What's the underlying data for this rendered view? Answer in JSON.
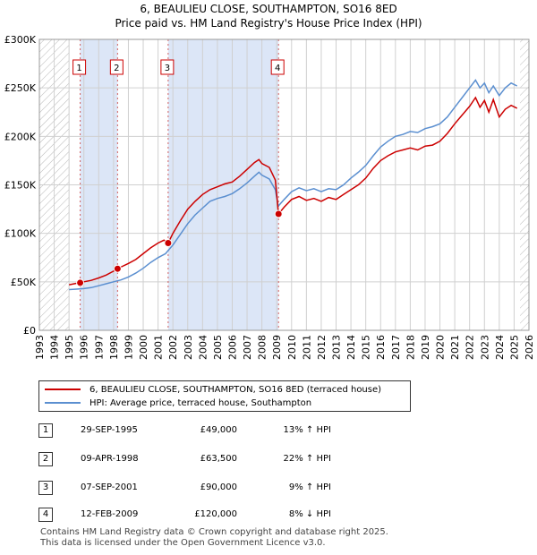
{
  "title_line1": "6, BEAULIEU CLOSE, SOUTHAMPTON, SO16 8ED",
  "title_line2": "Price paid vs. HM Land Registry's House Price Index (HPI)",
  "legend": {
    "property_label": "6, BEAULIEU CLOSE, SOUTHAMPTON, SO16 8ED (terraced house)",
    "hpi_label": "HPI: Average price, terraced house, Southampton"
  },
  "colors": {
    "property": "#cc0000",
    "hpi": "#5b8fd0",
    "shade": "#dce6f7",
    "grid": "#d0d0d0",
    "marker_line": "#d06060"
  },
  "transactions": [
    {
      "num": "1",
      "date": "29-SEP-1995",
      "price": "£49,000",
      "hpi": "13% ↑ HPI"
    },
    {
      "num": "2",
      "date": "09-APR-1998",
      "price": "£63,500",
      "hpi": "22% ↑ HPI"
    },
    {
      "num": "3",
      "date": "07-SEP-2001",
      "price": "£90,000",
      "hpi": "9% ↑ HPI"
    },
    {
      "num": "4",
      "date": "12-FEB-2009",
      "price": "£120,000",
      "hpi": "8% ↓ HPI"
    }
  ],
  "footer_line1": "Contains HM Land Registry data © Crown copyright and database right 2025.",
  "footer_line2": "This data is licensed under the Open Government Licence v3.0.",
  "chart_data": {
    "type": "line",
    "title": "6, BEAULIEU CLOSE, SOUTHAMPTON, SO16 8ED",
    "xlim": [
      1993,
      2026
    ],
    "ylim": [
      0,
      300000
    ],
    "x_ticks": [
      "1993",
      "1994",
      "1995",
      "1996",
      "1997",
      "1998",
      "1999",
      "2000",
      "2001",
      "2002",
      "2003",
      "2004",
      "2005",
      "2006",
      "2007",
      "2008",
      "2009",
      "2010",
      "2011",
      "2012",
      "2013",
      "2014",
      "2015",
      "2016",
      "2017",
      "2018",
      "2019",
      "2020",
      "2021",
      "2022",
      "2023",
      "2024",
      "2025",
      "2026"
    ],
    "y_ticks": [
      {
        "value": 0,
        "label": "£0"
      },
      {
        "value": 50000,
        "label": "£50K"
      },
      {
        "value": 100000,
        "label": "£100K"
      },
      {
        "value": 150000,
        "label": "£150K"
      },
      {
        "value": 200000,
        "label": "£200K"
      },
      {
        "value": 250000,
        "label": "£250K"
      },
      {
        "value": 300000,
        "label": "£300K"
      }
    ],
    "hatch_ranges": [
      [
        1993,
        1995.0
      ],
      [
        2025.4,
        2026
      ]
    ],
    "shaded_ranges": [
      [
        1995.75,
        1998.27
      ],
      [
        2001.68,
        2009.12
      ]
    ],
    "sales": [
      {
        "label": "1",
        "x": 1995.75,
        "y": 49000
      },
      {
        "label": "2",
        "x": 1998.27,
        "y": 63500
      },
      {
        "label": "3",
        "x": 2001.68,
        "y": 90000
      },
      {
        "label": "4",
        "x": 2009.12,
        "y": 120000
      }
    ],
    "series": [
      {
        "name": "6, BEAULIEU CLOSE, SOUTHAMPTON, SO16 8ED (terraced house)",
        "x": [
          1995.0,
          1995.5,
          1995.75,
          1996.0,
          1996.5,
          1997.0,
          1997.5,
          1998.0,
          1998.27,
          1998.6,
          1999.0,
          1999.5,
          2000.0,
          2000.5,
          2001.0,
          2001.4,
          2001.68,
          2002.0,
          2002.5,
          2003.0,
          2003.5,
          2004.0,
          2004.5,
          2005.0,
          2005.5,
          2006.0,
          2006.5,
          2007.0,
          2007.5,
          2007.8,
          2008.0,
          2008.5,
          2008.9,
          2009.12,
          2009.5,
          2010.0,
          2010.5,
          2011.0,
          2011.5,
          2012.0,
          2012.5,
          2013.0,
          2013.5,
          2014.0,
          2014.5,
          2015.0,
          2015.5,
          2016.0,
          2016.5,
          2017.0,
          2017.5,
          2018.0,
          2018.5,
          2019.0,
          2019.5,
          2020.0,
          2020.5,
          2021.0,
          2021.5,
          2022.0,
          2022.4,
          2022.7,
          2023.0,
          2023.3,
          2023.6,
          2024.0,
          2024.4,
          2024.8,
          2025.2
        ],
        "y": [
          47000,
          48500,
          49000,
          50000,
          51500,
          54000,
          57000,
          61000,
          63500,
          66000,
          69000,
          73000,
          79000,
          85000,
          90000,
          93000,
          90000,
          100000,
          113000,
          125000,
          133000,
          140000,
          145000,
          148000,
          151000,
          153000,
          159000,
          166000,
          173000,
          176000,
          172000,
          168000,
          155000,
          120000,
          127000,
          135000,
          138000,
          134000,
          136000,
          133000,
          137000,
          135000,
          140000,
          145000,
          150000,
          157000,
          167000,
          175000,
          180000,
          184000,
          186000,
          188000,
          186000,
          190000,
          191000,
          195000,
          203000,
          213000,
          222000,
          231000,
          240000,
          230000,
          237000,
          225000,
          238000,
          220000,
          228000,
          232000,
          229000
        ]
      },
      {
        "name": "HPI: Average price, terraced house, Southampton",
        "x": [
          1995.0,
          1995.5,
          1996.0,
          1996.5,
          1997.0,
          1997.5,
          1998.0,
          1998.5,
          1999.0,
          1999.5,
          2000.0,
          2000.5,
          2001.0,
          2001.5,
          2002.0,
          2002.5,
          2003.0,
          2003.5,
          2004.0,
          2004.5,
          2005.0,
          2005.5,
          2006.0,
          2006.5,
          2007.0,
          2007.5,
          2007.8,
          2008.0,
          2008.5,
          2008.9,
          2009.1,
          2009.5,
          2010.0,
          2010.5,
          2011.0,
          2011.5,
          2012.0,
          2012.5,
          2013.0,
          2013.5,
          2014.0,
          2014.5,
          2015.0,
          2015.5,
          2016.0,
          2016.5,
          2017.0,
          2017.5,
          2018.0,
          2018.5,
          2019.0,
          2019.5,
          2020.0,
          2020.5,
          2021.0,
          2021.5,
          2022.0,
          2022.4,
          2022.7,
          2023.0,
          2023.3,
          2023.6,
          2024.0,
          2024.4,
          2024.8,
          2025.2
        ],
        "y": [
          42000,
          42500,
          43000,
          44000,
          46000,
          48000,
          50000,
          52000,
          55000,
          59000,
          64000,
          70000,
          75000,
          79000,
          88000,
          99000,
          110000,
          119000,
          126000,
          133000,
          136000,
          138000,
          141000,
          146000,
          152000,
          159000,
          163000,
          160000,
          156000,
          145000,
          128000,
          135000,
          143000,
          147000,
          144000,
          146000,
          143000,
          146000,
          145000,
          150000,
          157000,
          163000,
          170000,
          180000,
          189000,
          195000,
          200000,
          202000,
          205000,
          204000,
          208000,
          210000,
          213000,
          220000,
          230000,
          240000,
          250000,
          258000,
          250000,
          255000,
          245000,
          252000,
          242000,
          250000,
          255000,
          252000
        ]
      }
    ]
  }
}
